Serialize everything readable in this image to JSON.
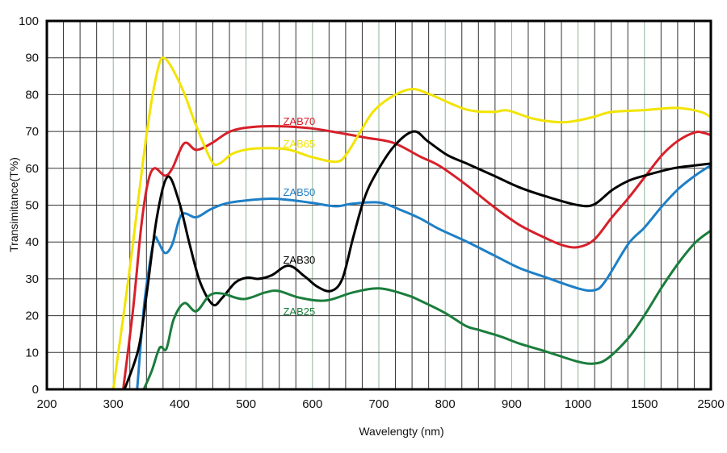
{
  "chart_data": {
    "type": "line",
    "title": "",
    "xlabel": "Wavelengty (nm)",
    "ylabel": "Transimitance(T%)",
    "x_ticks": [
      200,
      300,
      400,
      500,
      600,
      700,
      800,
      900,
      1000,
      1500,
      2500
    ],
    "x_tick_labels": [
      "200",
      "300",
      "400",
      "500",
      "600",
      "700",
      "800",
      "900",
      "1000",
      "1500",
      "2500"
    ],
    "x_scale": "piecewise (ticks evenly spaced)",
    "minor_per_major": 4,
    "ylim": [
      0,
      100
    ],
    "y_ticks": [
      0,
      10,
      20,
      30,
      40,
      50,
      60,
      70,
      80,
      90,
      100
    ],
    "y_tick_labels": [
      "0",
      "10",
      "20",
      "30",
      "40",
      "50",
      "60",
      "70",
      "80",
      "90",
      "100"
    ],
    "grid": true,
    "legend": "inline labels",
    "series": [
      {
        "name": "ZAB70",
        "color": "#d7202a",
        "label_at": [
          580,
          72.9
        ],
        "points": [
          [
            315,
            0
          ],
          [
            330,
            22
          ],
          [
            342,
            44
          ],
          [
            352,
            56
          ],
          [
            362,
            60
          ],
          [
            378,
            58
          ],
          [
            389,
            60
          ],
          [
            407,
            66.8
          ],
          [
            425,
            65
          ],
          [
            448,
            66.8
          ],
          [
            476,
            70
          ],
          [
            509,
            71.2
          ],
          [
            555,
            71.4
          ],
          [
            600,
            70.8
          ],
          [
            641,
            69.6
          ],
          [
            681,
            68.3
          ],
          [
            722,
            66.9
          ],
          [
            762,
            63.2
          ],
          [
            791,
            60.7
          ],
          [
            831,
            55.6
          ],
          [
            872,
            49.7
          ],
          [
            912,
            44.6
          ],
          [
            953,
            40.9
          ],
          [
            977,
            39.1
          ],
          [
            1000,
            38.6
          ],
          [
            1121,
            40.6
          ],
          [
            1253,
            46.6
          ],
          [
            1379,
            51.9
          ],
          [
            1500,
            57.5
          ],
          [
            1765,
            63.6
          ],
          [
            2017,
            67.6
          ],
          [
            2269,
            69.8
          ],
          [
            2395,
            69.6
          ],
          [
            2500,
            69
          ]
        ]
      },
      {
        "name": "ZAB65",
        "color": "#f2e400",
        "label_at": [
          580,
          66.7
        ],
        "points": [
          [
            300,
            0
          ],
          [
            325,
            33
          ],
          [
            350,
            69
          ],
          [
            366,
            86
          ],
          [
            378,
            89.8
          ],
          [
            403,
            82
          ],
          [
            425,
            71.5
          ],
          [
            448,
            62
          ],
          [
            460,
            61.3
          ],
          [
            480,
            64
          ],
          [
            509,
            65.3
          ],
          [
            560,
            65.2
          ],
          [
            600,
            63
          ],
          [
            637,
            61.8
          ],
          [
            653,
            64.3
          ],
          [
            673,
            70.2
          ],
          [
            693,
            75.7
          ],
          [
            722,
            79.7
          ],
          [
            750,
            81.5
          ],
          [
            778,
            80
          ],
          [
            831,
            76
          ],
          [
            872,
            75.3
          ],
          [
            894,
            75.7
          ],
          [
            932,
            73.5
          ],
          [
            973,
            72.5
          ],
          [
            1000,
            73
          ],
          [
            1121,
            74
          ],
          [
            1253,
            75.3
          ],
          [
            1500,
            75.8
          ],
          [
            1933,
            76.4
          ],
          [
            2185,
            76
          ],
          [
            2395,
            75
          ],
          [
            2500,
            73.8
          ]
        ]
      },
      {
        "name": "ZAB50",
        "color": "#1e7fc6",
        "label_at": [
          580,
          53.6
        ],
        "points": [
          [
            336,
            0
          ],
          [
            346,
            22
          ],
          [
            354,
            33
          ],
          [
            362,
            41
          ],
          [
            368,
            40
          ],
          [
            378,
            37
          ],
          [
            389,
            39.4
          ],
          [
            403,
            47.4
          ],
          [
            425,
            46.7
          ],
          [
            448,
            49
          ],
          [
            476,
            50.7
          ],
          [
            529,
            51.7
          ],
          [
            560,
            51.5
          ],
          [
            600,
            50.6
          ],
          [
            635,
            49.7
          ],
          [
            661,
            50.4
          ],
          [
            701,
            50.7
          ],
          [
            734,
            48.6
          ],
          [
            762,
            46.4
          ],
          [
            791,
            43.5
          ],
          [
            831,
            40.2
          ],
          [
            872,
            36.5
          ],
          [
            912,
            32.9
          ],
          [
            953,
            30.3
          ],
          [
            1000,
            27.4
          ],
          [
            1121,
            26.9
          ],
          [
            1202,
            29.2
          ],
          [
            1379,
            39.5
          ],
          [
            1500,
            43.9
          ],
          [
            1765,
            49.7
          ],
          [
            2017,
            54.5
          ],
          [
            2269,
            58.1
          ],
          [
            2500,
            60.8
          ]
        ]
      },
      {
        "name": "ZAB30",
        "color": "#000000",
        "label_at": [
          580,
          35.2
        ],
        "points": [
          [
            317,
            0
          ],
          [
            338,
            11
          ],
          [
            350,
            25.5
          ],
          [
            366,
            47
          ],
          [
            382,
            57.7
          ],
          [
            399,
            51
          ],
          [
            415,
            39.4
          ],
          [
            431,
            29
          ],
          [
            450,
            23
          ],
          [
            464,
            24.8
          ],
          [
            484,
            29
          ],
          [
            502,
            30.3
          ],
          [
            519,
            30
          ],
          [
            539,
            31
          ],
          [
            564,
            33.6
          ],
          [
            588,
            30.7
          ],
          [
            608,
            27.8
          ],
          [
            628,
            26.7
          ],
          [
            645,
            30
          ],
          [
            661,
            41
          ],
          [
            677,
            51.2
          ],
          [
            693,
            57.7
          ],
          [
            722,
            65.8
          ],
          [
            752,
            70
          ],
          [
            774,
            67.3
          ],
          [
            803,
            63.6
          ],
          [
            831,
            61.4
          ],
          [
            872,
            58.1
          ],
          [
            912,
            54.8
          ],
          [
            953,
            52.3
          ],
          [
            1000,
            50
          ],
          [
            1121,
            50.2
          ],
          [
            1253,
            54
          ],
          [
            1379,
            56.6
          ],
          [
            1500,
            58
          ],
          [
            1933,
            60
          ],
          [
            2269,
            60.8
          ],
          [
            2500,
            61.3
          ]
        ]
      },
      {
        "name": "ZAB25",
        "color": "#1a7d3c",
        "label_at": [
          580,
          21.2
        ],
        "points": [
          [
            346,
            0
          ],
          [
            358,
            5
          ],
          [
            370,
            11.3
          ],
          [
            380,
            11
          ],
          [
            391,
            19
          ],
          [
            407,
            23.4
          ],
          [
            425,
            21.2
          ],
          [
            445,
            25.5
          ],
          [
            464,
            26
          ],
          [
            496,
            24.5
          ],
          [
            529,
            26.3
          ],
          [
            549,
            26.7
          ],
          [
            580,
            24.9
          ],
          [
            620,
            24.1
          ],
          [
            661,
            26.3
          ],
          [
            701,
            27.4
          ],
          [
            742,
            25.6
          ],
          [
            762,
            24.1
          ],
          [
            799,
            20.8
          ],
          [
            831,
            17.2
          ],
          [
            851,
            16.1
          ],
          [
            884,
            14.3
          ],
          [
            912,
            12.4
          ],
          [
            953,
            10.2
          ],
          [
            1000,
            7.5
          ],
          [
            1121,
            7
          ],
          [
            1223,
            8.4
          ],
          [
            1379,
            13.9
          ],
          [
            1500,
            20.1
          ],
          [
            1765,
            27.8
          ],
          [
            2017,
            34.4
          ],
          [
            2269,
            39.9
          ],
          [
            2500,
            43.1
          ]
        ]
      }
    ]
  }
}
